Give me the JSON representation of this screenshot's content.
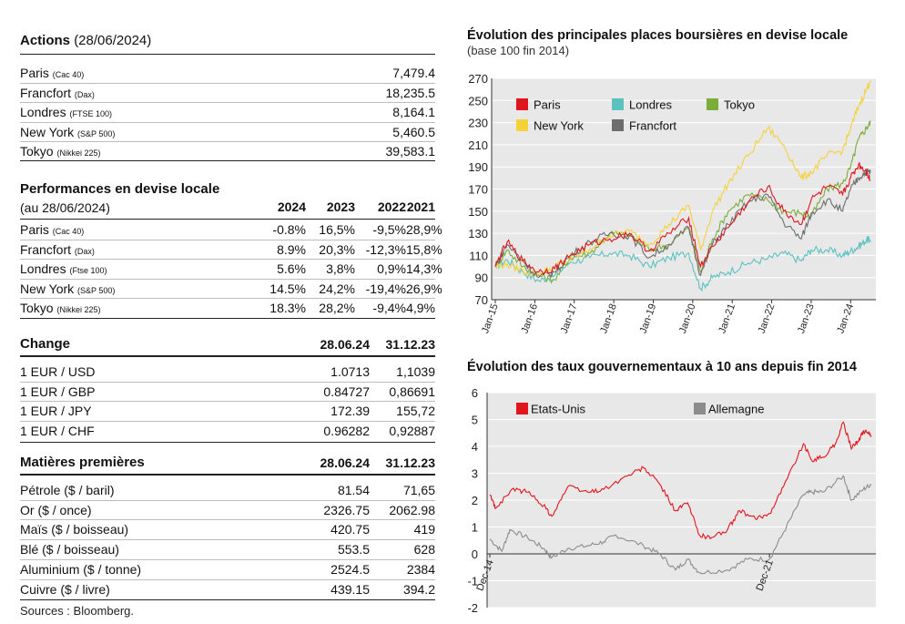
{
  "actions": {
    "title": "Actions",
    "date": "(28/06/2024)",
    "rows": [
      {
        "name": "Paris",
        "index": "(Cac 40)",
        "value": "7,479.4"
      },
      {
        "name": "Francfort",
        "index": "(Dax)",
        "value": "18,235.5"
      },
      {
        "name": "Londres",
        "index": "(FTSE 100)",
        "value": "8,164.1"
      },
      {
        "name": "New York",
        "index": "(S&P 500)",
        "value": "5,460.5"
      },
      {
        "name": "Tokyo",
        "index": "(Nikkei 225)",
        "value": "39,583.1"
      }
    ]
  },
  "performances": {
    "title": "Performances en devise locale",
    "subtitle": "(au 28/06/2024)",
    "years": [
      "2024",
      "2023",
      "2022",
      "2021"
    ],
    "rows": [
      {
        "name": "Paris",
        "index": "(Cac 40)",
        "values": [
          "-0.8%",
          "16,5%",
          "-9,5%",
          "28,9%"
        ]
      },
      {
        "name": "Francfort",
        "index": "(Dax)",
        "values": [
          "8.9%",
          "20,3%",
          "-12,3%",
          "15,8%"
        ]
      },
      {
        "name": "Londres",
        "index": "(Ftse 100)",
        "values": [
          "5.6%",
          "3,8%",
          "0,9%",
          "14,3%"
        ]
      },
      {
        "name": "New York",
        "index": "(S&P 500)",
        "values": [
          "14.5%",
          "24,2%",
          "-19,4%",
          "26,9%"
        ]
      },
      {
        "name": "Tokyo",
        "index": "(Nikkei 225)",
        "values": [
          "18.3%",
          "28,2%",
          "-9,4%",
          "4,9%"
        ]
      }
    ]
  },
  "change": {
    "title": "Change",
    "col1": "28.06.24",
    "col2": "31.12.23",
    "rows": [
      {
        "name": "1 EUR / USD",
        "v1": "1.0713",
        "v2": "1,1039"
      },
      {
        "name": "1 EUR / GBP",
        "v1": "0.84727",
        "v2": "0,86691"
      },
      {
        "name": "1 EUR / JPY",
        "v1": "172.39",
        "v2": "155,72"
      },
      {
        "name": "1 EUR / CHF",
        "v1": "0.96282",
        "v2": "0,92887"
      }
    ]
  },
  "matieres": {
    "title": "Matières premières",
    "col1": "28.06.24",
    "col2": "31.12.23",
    "rows": [
      {
        "name": "Pétrole ($ / baril)",
        "v1": "81.54",
        "v2": "71,65"
      },
      {
        "name": "Or ($ / once)",
        "v1": "2326.75",
        "v2": "2062.98"
      },
      {
        "name": "Maïs ($ / boisseau)",
        "v1": "420.75",
        "v2": "419"
      },
      {
        "name": "Blé ($ / boisseau)",
        "v1": "553.5",
        "v2": "628"
      },
      {
        "name": "Aluminium ($ / tonne)",
        "v1": "2524.5",
        "v2": "2384"
      },
      {
        "name": "Cuivre ($ / livre)",
        "v1": "439.15",
        "v2": "394.2"
      }
    ]
  },
  "sources": "Sources : Bloomberg.",
  "chart_data": [
    {
      "type": "line",
      "title": "Évolution des principales places boursières en devise locale",
      "subtitle": "(base 100 fin 2014)",
      "ylim": [
        70,
        270
      ],
      "yticks": [
        70,
        90,
        110,
        130,
        150,
        170,
        190,
        210,
        230,
        250,
        270
      ],
      "xticks": [
        "Jan-15",
        "Jan-16",
        "Jan-17",
        "Jan-18",
        "Jan-19",
        "Jan-20",
        "Jan-21",
        "Jan-22",
        "Jan-23",
        "Jan-24"
      ],
      "xrange": [
        2015.0,
        2024.5
      ],
      "legend_position": "top",
      "series": [
        {
          "name": "Paris",
          "color": "#e0161c",
          "points": [
            [
              2015.0,
              100
            ],
            [
              2015.3,
              122
            ],
            [
              2015.7,
              105
            ],
            [
              2016.1,
              95
            ],
            [
              2016.5,
              98
            ],
            [
              2016.9,
              110
            ],
            [
              2017.4,
              120
            ],
            [
              2017.9,
              125
            ],
            [
              2018.4,
              130
            ],
            [
              2018.9,
              114
            ],
            [
              2019.4,
              130
            ],
            [
              2019.9,
              144
            ],
            [
              2020.2,
              100
            ],
            [
              2020.5,
              118
            ],
            [
              2020.9,
              135
            ],
            [
              2021.4,
              158
            ],
            [
              2021.9,
              172
            ],
            [
              2022.3,
              150
            ],
            [
              2022.75,
              138
            ],
            [
              2023.0,
              160
            ],
            [
              2023.4,
              172
            ],
            [
              2023.8,
              165
            ],
            [
              2024.0,
              180
            ],
            [
              2024.2,
              192
            ],
            [
              2024.4,
              186
            ],
            [
              2024.5,
              178
            ]
          ]
        },
        {
          "name": "Londres",
          "color": "#5bc2bf",
          "points": [
            [
              2015.0,
              100
            ],
            [
              2015.3,
              106
            ],
            [
              2015.7,
              95
            ],
            [
              2016.1,
              87
            ],
            [
              2016.5,
              92
            ],
            [
              2016.9,
              104
            ],
            [
              2017.4,
              108
            ],
            [
              2017.9,
              112
            ],
            [
              2018.4,
              110
            ],
            [
              2018.9,
              100
            ],
            [
              2019.4,
              108
            ],
            [
              2019.9,
              112
            ],
            [
              2020.2,
              80
            ],
            [
              2020.5,
              90
            ],
            [
              2020.9,
              95
            ],
            [
              2021.4,
              103
            ],
            [
              2021.9,
              107
            ],
            [
              2022.3,
              112
            ],
            [
              2022.75,
              105
            ],
            [
              2023.0,
              115
            ],
            [
              2023.4,
              115
            ],
            [
              2023.8,
              110
            ],
            [
              2024.0,
              114
            ],
            [
              2024.2,
              118
            ],
            [
              2024.4,
              124
            ],
            [
              2024.5,
              124
            ]
          ]
        },
        {
          "name": "Tokyo",
          "color": "#7aad3a",
          "points": [
            [
              2015.0,
              100
            ],
            [
              2015.3,
              115
            ],
            [
              2015.7,
              100
            ],
            [
              2016.1,
              92
            ],
            [
              2016.5,
              88
            ],
            [
              2016.9,
              108
            ],
            [
              2017.4,
              112
            ],
            [
              2017.9,
              130
            ],
            [
              2018.4,
              128
            ],
            [
              2018.9,
              115
            ],
            [
              2019.4,
              120
            ],
            [
              2019.9,
              135
            ],
            [
              2020.2,
              95
            ],
            [
              2020.5,
              125
            ],
            [
              2020.9,
              150
            ],
            [
              2021.4,
              165
            ],
            [
              2021.9,
              160
            ],
            [
              2022.3,
              150
            ],
            [
              2022.75,
              148
            ],
            [
              2023.0,
              145
            ],
            [
              2023.4,
              170
            ],
            [
              2023.8,
              175
            ],
            [
              2024.0,
              190
            ],
            [
              2024.2,
              215
            ],
            [
              2024.4,
              225
            ],
            [
              2024.5,
              230
            ]
          ]
        },
        {
          "name": "New York",
          "color": "#f5d23a",
          "points": [
            [
              2015.0,
              100
            ],
            [
              2015.3,
              102
            ],
            [
              2015.7,
              96
            ],
            [
              2016.1,
              93
            ],
            [
              2016.5,
              100
            ],
            [
              2016.9,
              106
            ],
            [
              2017.4,
              116
            ],
            [
              2017.9,
              128
            ],
            [
              2018.4,
              132
            ],
            [
              2018.9,
              120
            ],
            [
              2019.4,
              138
            ],
            [
              2019.9,
              155
            ],
            [
              2020.2,
              115
            ],
            [
              2020.5,
              150
            ],
            [
              2020.9,
              175
            ],
            [
              2021.4,
              200
            ],
            [
              2021.9,
              225
            ],
            [
              2022.3,
              210
            ],
            [
              2022.75,
              180
            ],
            [
              2023.0,
              185
            ],
            [
              2023.4,
              200
            ],
            [
              2023.8,
              205
            ],
            [
              2024.0,
              225
            ],
            [
              2024.2,
              245
            ],
            [
              2024.4,
              260
            ],
            [
              2024.5,
              268
            ]
          ]
        },
        {
          "name": "Francfort",
          "color": "#6d6d6d",
          "points": [
            [
              2015.0,
              100
            ],
            [
              2015.3,
              120
            ],
            [
              2015.7,
              105
            ],
            [
              2016.1,
              90
            ],
            [
              2016.5,
              95
            ],
            [
              2016.9,
              110
            ],
            [
              2017.4,
              122
            ],
            [
              2017.9,
              130
            ],
            [
              2018.4,
              128
            ],
            [
              2018.9,
              108
            ],
            [
              2019.4,
              120
            ],
            [
              2019.9,
              135
            ],
            [
              2020.2,
              92
            ],
            [
              2020.5,
              120
            ],
            [
              2020.9,
              138
            ],
            [
              2021.4,
              158
            ],
            [
              2021.9,
              165
            ],
            [
              2022.3,
              140
            ],
            [
              2022.75,
              125
            ],
            [
              2023.0,
              148
            ],
            [
              2023.4,
              160
            ],
            [
              2023.8,
              150
            ],
            [
              2024.0,
              170
            ],
            [
              2024.2,
              180
            ],
            [
              2024.4,
              186
            ],
            [
              2024.5,
              185
            ]
          ]
        }
      ]
    },
    {
      "type": "line",
      "title": "Évolution des taux gouvernementaux à 10 ans depuis fin 2014",
      "ylim": [
        -2,
        6
      ],
      "yticks": [
        -2,
        -1,
        0,
        1,
        2,
        3,
        4,
        5,
        6
      ],
      "xticks": [
        "Dec-14",
        "Dec-21"
      ],
      "xrange": [
        2014.95,
        2024.5
      ],
      "legend_position": "top",
      "series": [
        {
          "name": "Etats-Unis",
          "color": "#e0161c",
          "points": [
            [
              2014.95,
              2.2
            ],
            [
              2015.1,
              1.7
            ],
            [
              2015.5,
              2.4
            ],
            [
              2015.9,
              2.3
            ],
            [
              2016.3,
              1.8
            ],
            [
              2016.5,
              1.4
            ],
            [
              2016.9,
              2.5
            ],
            [
              2017.4,
              2.3
            ],
            [
              2017.8,
              2.4
            ],
            [
              2018.4,
              2.9
            ],
            [
              2018.8,
              3.2
            ],
            [
              2019.2,
              2.6
            ],
            [
              2019.6,
              1.6
            ],
            [
              2019.9,
              1.9
            ],
            [
              2020.2,
              0.7
            ],
            [
              2020.5,
              0.6
            ],
            [
              2020.9,
              0.9
            ],
            [
              2021.2,
              1.6
            ],
            [
              2021.6,
              1.3
            ],
            [
              2021.95,
              1.5
            ],
            [
              2022.3,
              2.5
            ],
            [
              2022.8,
              4.1
            ],
            [
              2023.0,
              3.5
            ],
            [
              2023.3,
              3.6
            ],
            [
              2023.6,
              4.1
            ],
            [
              2023.8,
              4.9
            ],
            [
              2024.0,
              3.9
            ],
            [
              2024.2,
              4.3
            ],
            [
              2024.35,
              4.6
            ],
            [
              2024.5,
              4.4
            ]
          ]
        },
        {
          "name": "Allemagne",
          "color": "#8c8c8c",
          "points": [
            [
              2014.95,
              0.55
            ],
            [
              2015.25,
              0.1
            ],
            [
              2015.45,
              0.9
            ],
            [
              2015.9,
              0.6
            ],
            [
              2016.3,
              0.2
            ],
            [
              2016.5,
              -0.15
            ],
            [
              2016.9,
              0.2
            ],
            [
              2017.4,
              0.3
            ],
            [
              2017.8,
              0.45
            ],
            [
              2018.1,
              0.7
            ],
            [
              2018.8,
              0.3
            ],
            [
              2019.2,
              0.0
            ],
            [
              2019.6,
              -0.6
            ],
            [
              2019.9,
              -0.2
            ],
            [
              2020.2,
              -0.7
            ],
            [
              2020.9,
              -0.6
            ],
            [
              2021.4,
              -0.2
            ],
            [
              2021.95,
              -0.2
            ],
            [
              2022.3,
              0.8
            ],
            [
              2022.8,
              2.2
            ],
            [
              2023.0,
              2.3
            ],
            [
              2023.3,
              2.3
            ],
            [
              2023.8,
              2.9
            ],
            [
              2024.0,
              2.0
            ],
            [
              2024.3,
              2.4
            ],
            [
              2024.5,
              2.6
            ]
          ]
        }
      ]
    }
  ]
}
